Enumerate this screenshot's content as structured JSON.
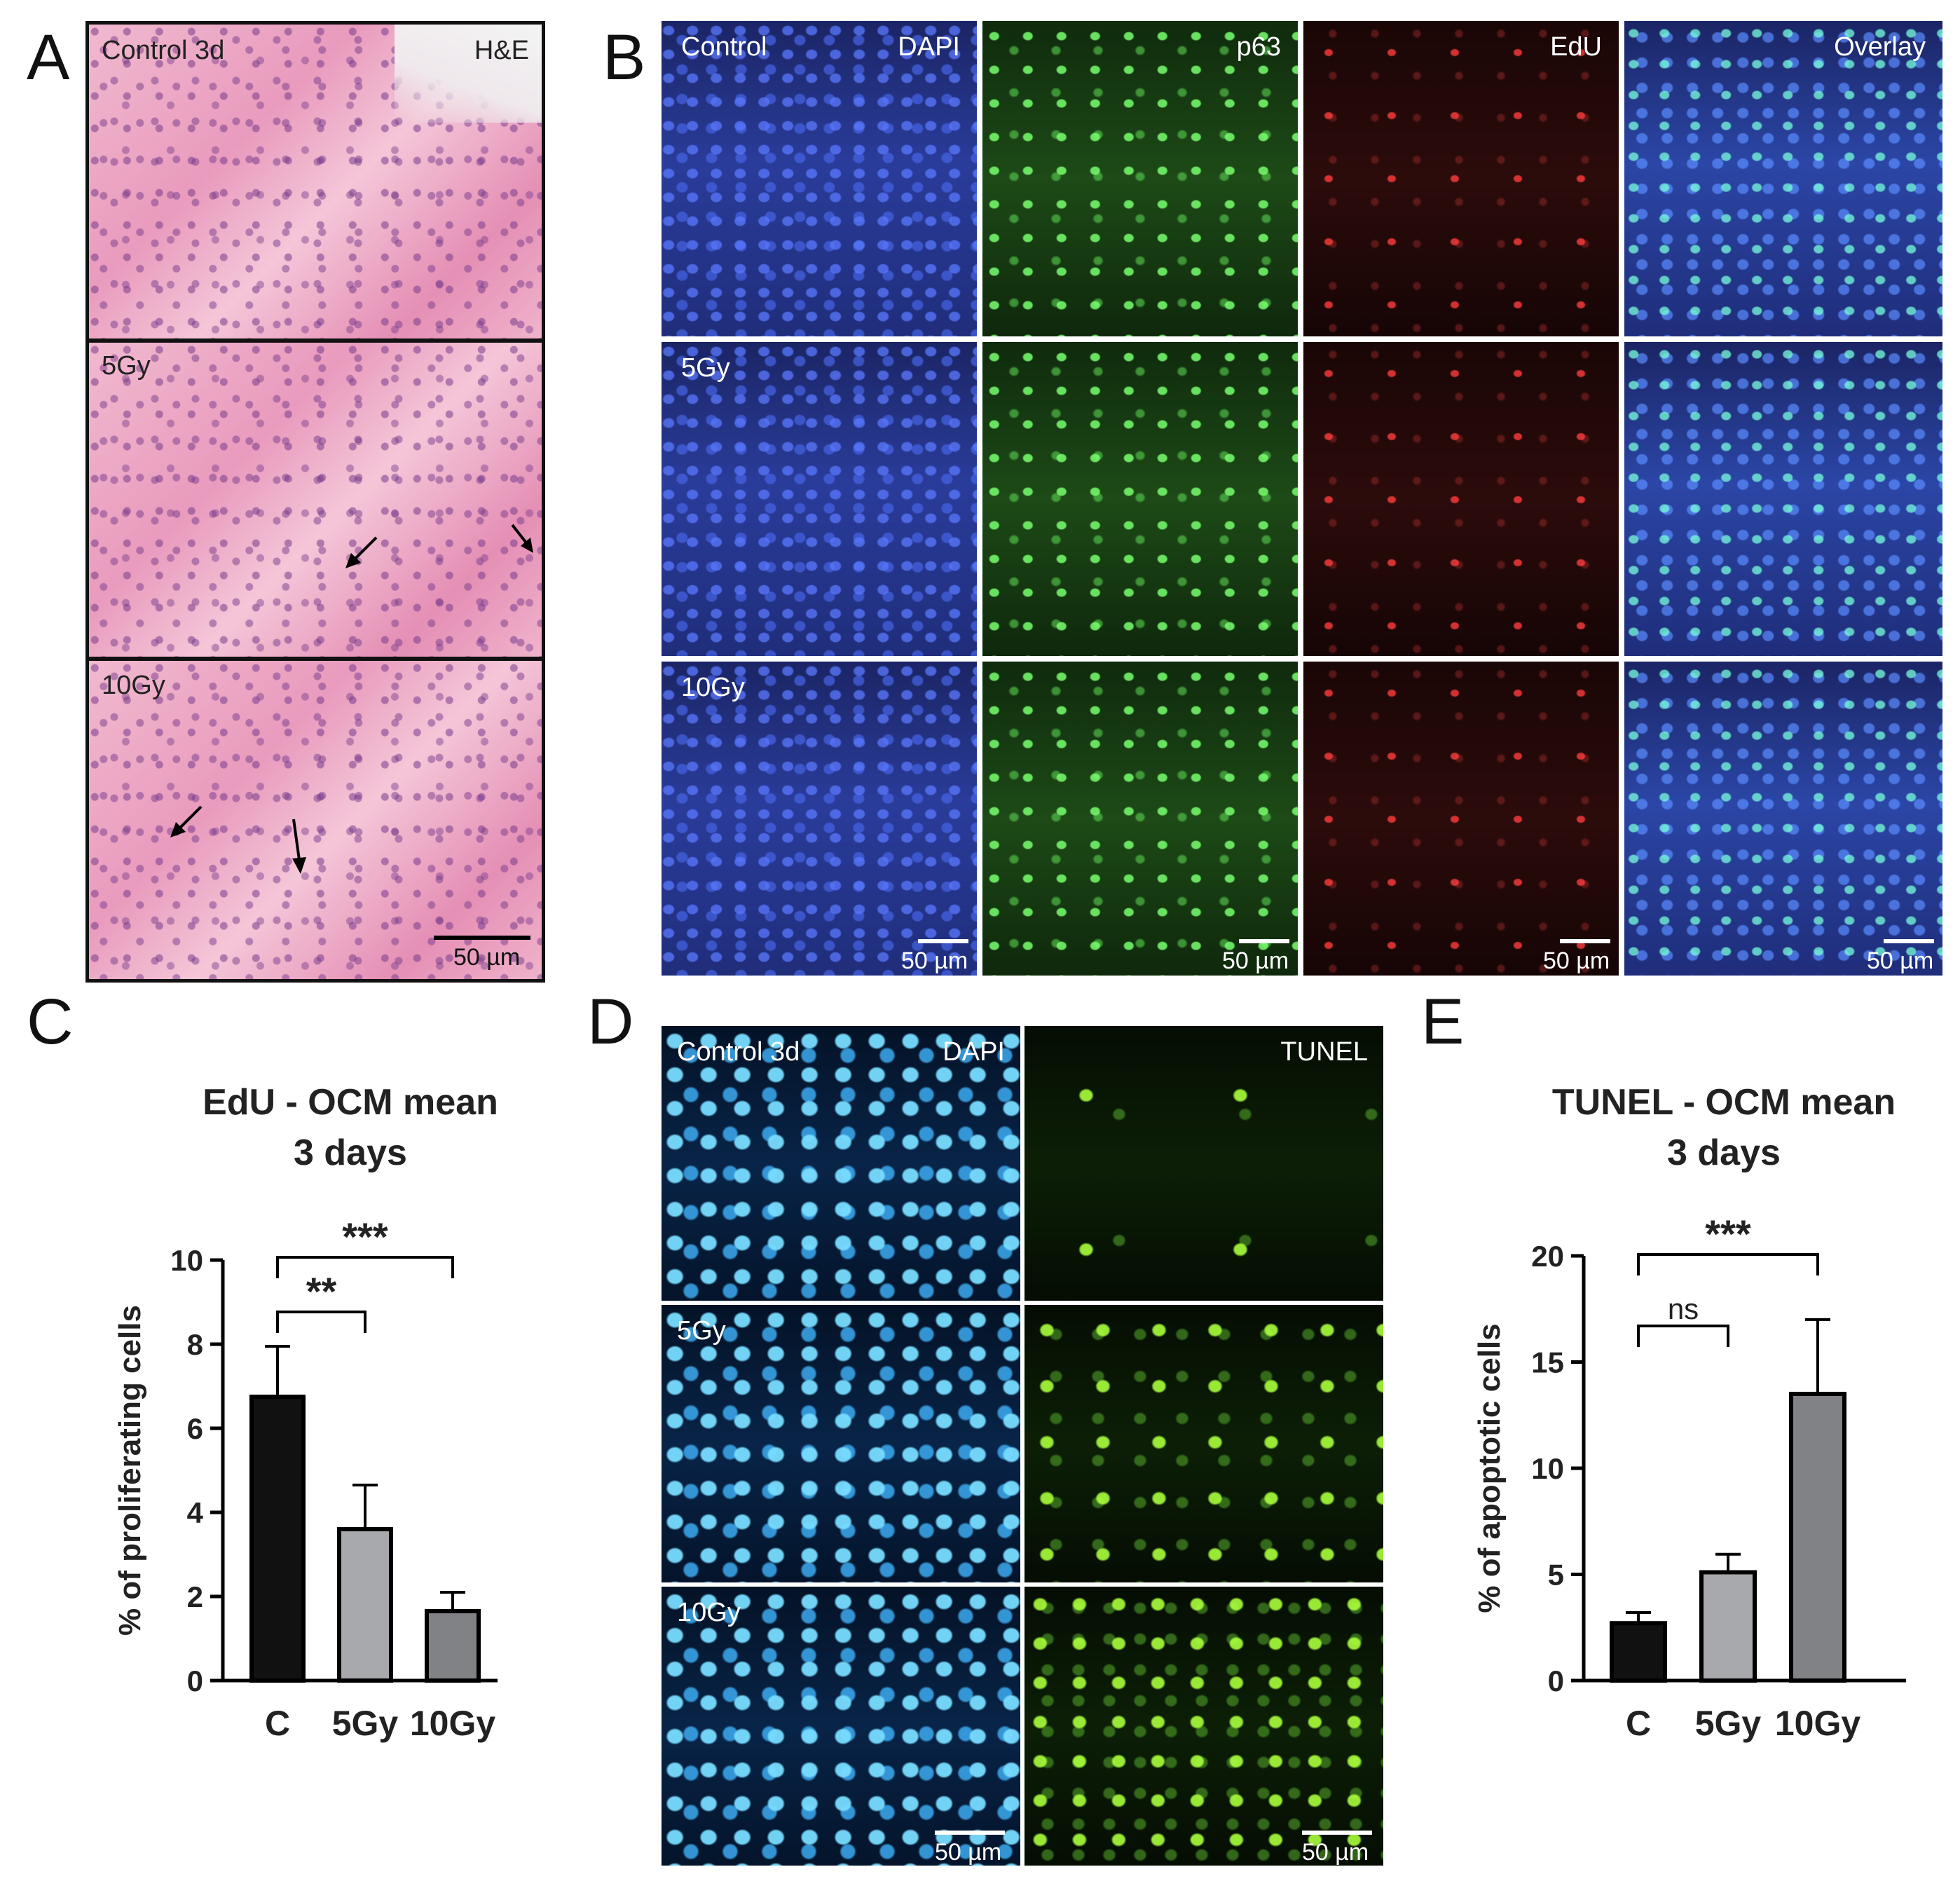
{
  "figure": {
    "panel_letters": {
      "a": "A",
      "b": "B",
      "c": "C",
      "d": "D",
      "e": "E"
    },
    "panel_a": {
      "stain_label": "H&E",
      "rows": [
        {
          "label": "Control 3d"
        },
        {
          "label": "5Gy"
        },
        {
          "label": "10Gy"
        }
      ],
      "scale_bar": "50 µm"
    },
    "panel_b": {
      "channels": [
        "DAPI",
        "p63",
        "EdU",
        "Overlay"
      ],
      "rows": [
        {
          "label": "Control"
        },
        {
          "label": "5Gy"
        },
        {
          "label": "10Gy"
        }
      ],
      "scale_bar": "50 µm"
    },
    "panel_d": {
      "channels": [
        "DAPI",
        "TUNEL"
      ],
      "rows": [
        {
          "label": "Control 3d"
        },
        {
          "label": "5Gy"
        },
        {
          "label": "10Gy"
        }
      ],
      "scale_bar": "50 µm"
    },
    "colors": {
      "bar_control": "#111111",
      "bar_5gy": "#a7a9ac",
      "bar_10gy": "#808285",
      "axis": "#000000"
    }
  },
  "chart_data": [
    {
      "type": "bar",
      "title": "EdU - OCM mean",
      "subtitle": "3 days",
      "categories": [
        "C",
        "5Gy",
        "10Gy"
      ],
      "values": [
        6.75,
        3.6,
        1.65
      ],
      "error": [
        1.2,
        1.05,
        0.45
      ],
      "ylabel": "% of proliferating cells",
      "ylim": [
        0,
        10
      ],
      "yticks": [
        0,
        2,
        4,
        6,
        8,
        10
      ],
      "significance": [
        {
          "from": 0,
          "to": 1,
          "label": "**"
        },
        {
          "from": 0,
          "to": 2,
          "label": "***"
        }
      ]
    },
    {
      "type": "bar",
      "title": "TUNEL - OCM mean",
      "subtitle": "3 days",
      "categories": [
        "C",
        "5Gy",
        "10Gy"
      ],
      "values": [
        2.7,
        5.1,
        13.5
      ],
      "error": [
        0.5,
        0.85,
        3.5
      ],
      "ylabel": "% of apoptotic cells",
      "ylim": [
        0,
        20
      ],
      "yticks": [
        0,
        5,
        10,
        15,
        20
      ],
      "significance": [
        {
          "from": 0,
          "to": 1,
          "label": "ns"
        },
        {
          "from": 0,
          "to": 2,
          "label": "***"
        }
      ]
    }
  ]
}
